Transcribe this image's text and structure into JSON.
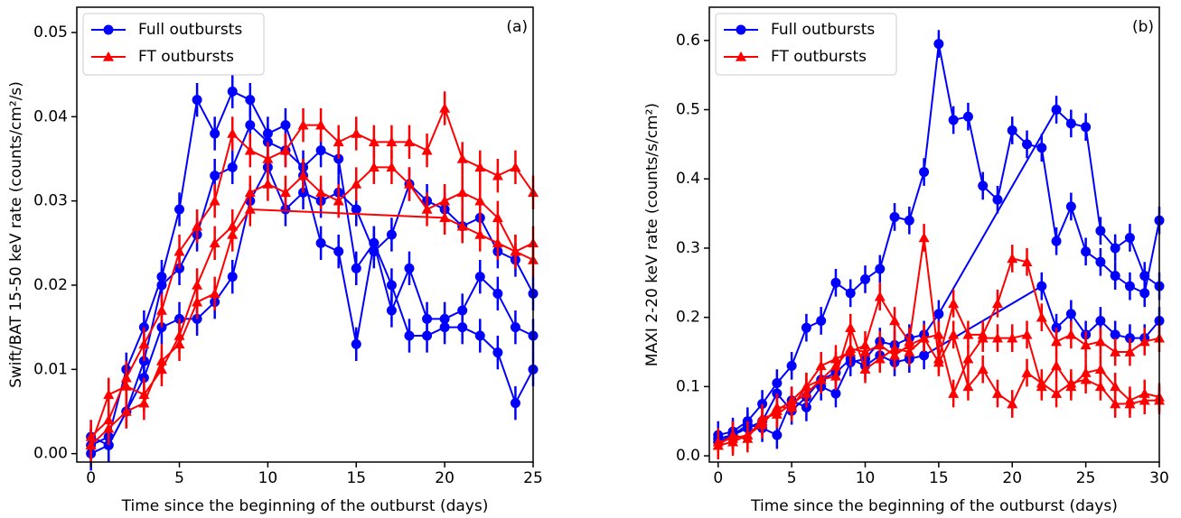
{
  "chart_data": [
    {
      "type": "line",
      "panel_label": "(a)",
      "xlabel": "Time since the beginning of the outburst (days)",
      "ylabel": "Swift/BAT 15-50 keV rate (counts/cm²/s)",
      "xlim": [
        -0.8,
        25
      ],
      "ylim": [
        -0.001,
        0.053
      ],
      "xticks": [
        0,
        5,
        10,
        15,
        20,
        25
      ],
      "yticks": [
        {
          "value": 0,
          "label": "0.00"
        },
        0.01,
        0.02,
        0.03,
        0.04,
        0.05
      ],
      "legend": [
        {
          "name": "Full outbursts",
          "color": "#0000ff",
          "marker": "circle"
        },
        {
          "name": "FT outbursts",
          "color": "#ff0000",
          "marker": "triangle"
        }
      ],
      "series": [
        {
          "color": "#0000ff",
          "marker": "circle",
          "error": 0.002,
          "x": [
            0,
            1,
            2,
            3,
            4,
            5,
            6,
            7,
            8,
            9,
            10,
            11,
            12,
            13,
            14,
            15,
            16,
            17,
            18,
            19,
            20,
            21,
            22,
            23,
            24,
            25
          ],
          "values": [
            0.001,
            0.002,
            0.01,
            0.015,
            0.021,
            0.029,
            0.042,
            0.038,
            0.043,
            0.042,
            0.038,
            0.039,
            0.033,
            0.025,
            0.024,
            0.013,
            0.025,
            0.02,
            0.014,
            0.014,
            0.015,
            0.015,
            0.014,
            0.012,
            0.006,
            0.01
          ]
        },
        {
          "color": "#0000ff",
          "marker": "circle",
          "error": 0.002,
          "x": [
            0,
            1,
            2,
            3,
            4,
            5,
            6,
            7,
            8,
            9,
            10,
            11,
            12,
            13,
            14,
            15,
            16,
            17,
            18,
            19,
            20,
            21,
            22,
            23,
            24,
            25
          ],
          "values": [
            0.0,
            0.001,
            0.005,
            0.011,
            0.02,
            0.022,
            0.026,
            0.033,
            0.034,
            0.039,
            0.037,
            0.036,
            0.034,
            0.036,
            0.035,
            0.022,
            0.025,
            0.017,
            0.022,
            0.016,
            0.016,
            0.017,
            0.021,
            0.019,
            0.015,
            0.014
          ]
        },
        {
          "color": "#0000ff",
          "marker": "circle",
          "error": 0.002,
          "x": [
            0,
            1,
            2,
            3,
            4,
            5,
            6,
            7,
            8,
            9,
            10,
            11,
            12,
            13,
            14,
            15,
            16,
            17,
            18,
            19,
            20,
            21,
            22,
            23,
            24,
            25
          ],
          "values": [
            0.002,
            0.001,
            0.005,
            0.009,
            0.015,
            0.016,
            0.016,
            0.018,
            0.021,
            0.03,
            0.034,
            0.029,
            0.031,
            0.03,
            0.031,
            0.029,
            0.024,
            0.026,
            0.032,
            0.03,
            0.029,
            0.027,
            0.028,
            0.024,
            0.023,
            0.019
          ]
        },
        {
          "color": "#ff0000",
          "marker": "triangle",
          "error": 0.002,
          "x": [
            0,
            1,
            2,
            3,
            4,
            5,
            6,
            7,
            8,
            9,
            10,
            11,
            12,
            13,
            14,
            15,
            16,
            17,
            18,
            19,
            20,
            21,
            22,
            23,
            24,
            25
          ],
          "values": [
            0.002,
            0.004,
            0.009,
            0.013,
            0.017,
            0.024,
            0.027,
            0.03,
            0.038,
            0.036,
            0.035,
            0.036,
            0.039,
            0.039,
            0.037,
            0.038,
            0.037,
            0.037,
            0.037,
            0.036,
            0.041,
            0.035,
            0.034,
            0.033,
            0.034,
            0.031
          ]
        },
        {
          "color": "#ff0000",
          "marker": "triangle",
          "error": 0.002,
          "x": [
            0,
            1,
            2,
            3,
            4,
            5,
            6,
            7,
            8,
            9,
            10,
            11,
            12,
            13,
            14,
            15,
            16,
            17,
            18,
            19,
            20,
            21,
            22,
            23,
            24,
            25
          ],
          "values": [
            0.001,
            0.007,
            0.008,
            0.007,
            0.01,
            0.014,
            0.02,
            0.025,
            0.027,
            0.031,
            0.032,
            0.031,
            0.033,
            0.031,
            0.03,
            0.032,
            0.034,
            0.034,
            0.032,
            0.029,
            0.03,
            0.031,
            0.03,
            0.028,
            0.024,
            0.025
          ]
        },
        {
          "color": "#ff0000",
          "marker": "triangle",
          "error": 0.002,
          "x": [
            0,
            1,
            2,
            3,
            4,
            5,
            6,
            7,
            8,
            9,
            20,
            21,
            22,
            23,
            24,
            25
          ],
          "values": [
            0.001,
            0.003,
            0.005,
            0.006,
            0.011,
            0.013,
            0.018,
            0.019,
            0.026,
            0.029,
            0.028,
            0.027,
            0.026,
            0.025,
            0.024,
            0.023
          ]
        }
      ]
    },
    {
      "type": "line",
      "panel_label": "(b)",
      "xlabel": "Time since the beginning of the outburst (days)",
      "ylabel": "MAXI 2-20 keV rate (counts/s/cm²)",
      "xlim": [
        -0.6,
        30
      ],
      "ylim": [
        -0.009,
        0.648
      ],
      "xticks": [
        0,
        5,
        10,
        15,
        20,
        25,
        30
      ],
      "yticks": [
        {
          "value": 0,
          "label": "0.0"
        },
        0.1,
        0.2,
        0.3,
        0.4,
        0.5,
        0.6
      ],
      "legend": [
        {
          "name": "Full outbursts",
          "color": "#0000ff",
          "marker": "circle"
        },
        {
          "name": "FT outbursts",
          "color": "#ff0000",
          "marker": "triangle"
        }
      ],
      "series": [
        {
          "color": "#0000ff",
          "marker": "circle",
          "error": 0.02,
          "x": [
            0,
            1,
            2,
            3,
            4,
            5,
            6,
            7,
            8,
            9,
            10,
            11,
            12,
            13,
            14,
            15,
            16,
            17,
            18,
            19,
            20,
            21,
            22,
            23,
            24,
            25,
            26,
            27,
            28,
            29,
            30
          ],
          "values": [
            0.03,
            0.035,
            0.05,
            0.075,
            0.105,
            0.13,
            0.185,
            0.195,
            0.25,
            0.235,
            0.255,
            0.27,
            0.345,
            0.34,
            0.41,
            0.595,
            0.485,
            0.49,
            0.39,
            0.37,
            0.47,
            0.45,
            0.445,
            0.31,
            0.36,
            0.295,
            0.28,
            0.26,
            0.245,
            0.235,
            0.34
          ]
        },
        {
          "color": "#0000ff",
          "marker": "circle",
          "error": 0.02,
          "x": [
            0,
            1,
            2,
            3,
            4,
            5,
            6,
            7,
            8,
            9,
            10,
            11,
            12,
            13,
            14,
            15,
            23,
            24,
            25,
            26,
            27,
            28,
            29,
            30
          ],
          "values": [
            0.02,
            0.03,
            0.045,
            0.04,
            0.03,
            0.08,
            0.07,
            0.1,
            0.09,
            0.135,
            0.14,
            0.165,
            0.16,
            0.17,
            0.175,
            0.205,
            0.5,
            0.48,
            0.475,
            0.325,
            0.3,
            0.315,
            0.26,
            0.245
          ]
        },
        {
          "color": "#0000ff",
          "marker": "circle",
          "error": 0.02,
          "x": [
            0,
            1,
            2,
            3,
            4,
            5,
            6,
            7,
            8,
            9,
            10,
            11,
            12,
            13,
            14,
            22,
            23,
            24,
            25,
            26,
            27,
            28,
            29,
            30
          ],
          "values": [
            0.025,
            0.03,
            0.04,
            0.05,
            0.09,
            0.065,
            0.085,
            0.11,
            0.12,
            0.14,
            0.13,
            0.145,
            0.135,
            0.14,
            0.145,
            0.245,
            0.185,
            0.205,
            0.175,
            0.195,
            0.175,
            0.17,
            0.17,
            0.195
          ]
        },
        {
          "color": "#ff0000",
          "marker": "triangle",
          "error": 0.02,
          "x": [
            0,
            1,
            2,
            3,
            4,
            5,
            6,
            7,
            8,
            9,
            10,
            11,
            12,
            13,
            14,
            15,
            16,
            17,
            18,
            19,
            20,
            21,
            22,
            23,
            24,
            25,
            26,
            27,
            28,
            29,
            30
          ],
          "values": [
            0.015,
            0.02,
            0.03,
            0.05,
            0.065,
            0.08,
            0.1,
            0.13,
            0.14,
            0.15,
            0.16,
            0.23,
            0.195,
            0.165,
            0.315,
            0.14,
            0.22,
            0.175,
            0.175,
            0.22,
            0.285,
            0.28,
            0.2,
            0.165,
            0.175,
            0.16,
            0.165,
            0.15,
            0.15,
            0.165,
            0.17
          ]
        },
        {
          "color": "#ff0000",
          "marker": "triangle",
          "error": 0.02,
          "x": [
            0,
            1,
            2,
            3,
            4,
            5,
            6,
            7,
            8,
            9,
            10,
            11,
            12,
            13,
            14,
            15,
            16,
            17,
            18,
            19,
            20,
            21,
            22,
            23,
            24,
            25,
            26,
            27,
            28,
            29,
            30
          ],
          "values": [
            0.02,
            0.025,
            0.03,
            0.045,
            0.07,
            0.07,
            0.1,
            0.11,
            0.13,
            0.155,
            0.15,
            0.16,
            0.145,
            0.16,
            0.17,
            0.175,
            0.09,
            0.14,
            0.17,
            0.17,
            0.17,
            0.175,
            0.1,
            0.13,
            0.1,
            0.12,
            0.125,
            0.1,
            0.08,
            0.09,
            0.085
          ]
        },
        {
          "color": "#ff0000",
          "marker": "triangle",
          "error": 0.02,
          "x": [
            0,
            1,
            2,
            3,
            4,
            5,
            6,
            7,
            8,
            9,
            10,
            11,
            12,
            13,
            14,
            15,
            16,
            17,
            18,
            19,
            20,
            21,
            22,
            23,
            24,
            25,
            26,
            27,
            28,
            29,
            30
          ],
          "values": [
            0.015,
            0.03,
            0.025,
            0.055,
            0.06,
            0.075,
            0.09,
            0.11,
            0.115,
            0.185,
            0.125,
            0.14,
            0.155,
            0.15,
            0.17,
            0.135,
            0.175,
            0.1,
            0.125,
            0.09,
            0.075,
            0.12,
            0.105,
            0.09,
            0.105,
            0.11,
            0.1,
            0.075,
            0.075,
            0.08,
            0.08
          ]
        }
      ]
    }
  ]
}
